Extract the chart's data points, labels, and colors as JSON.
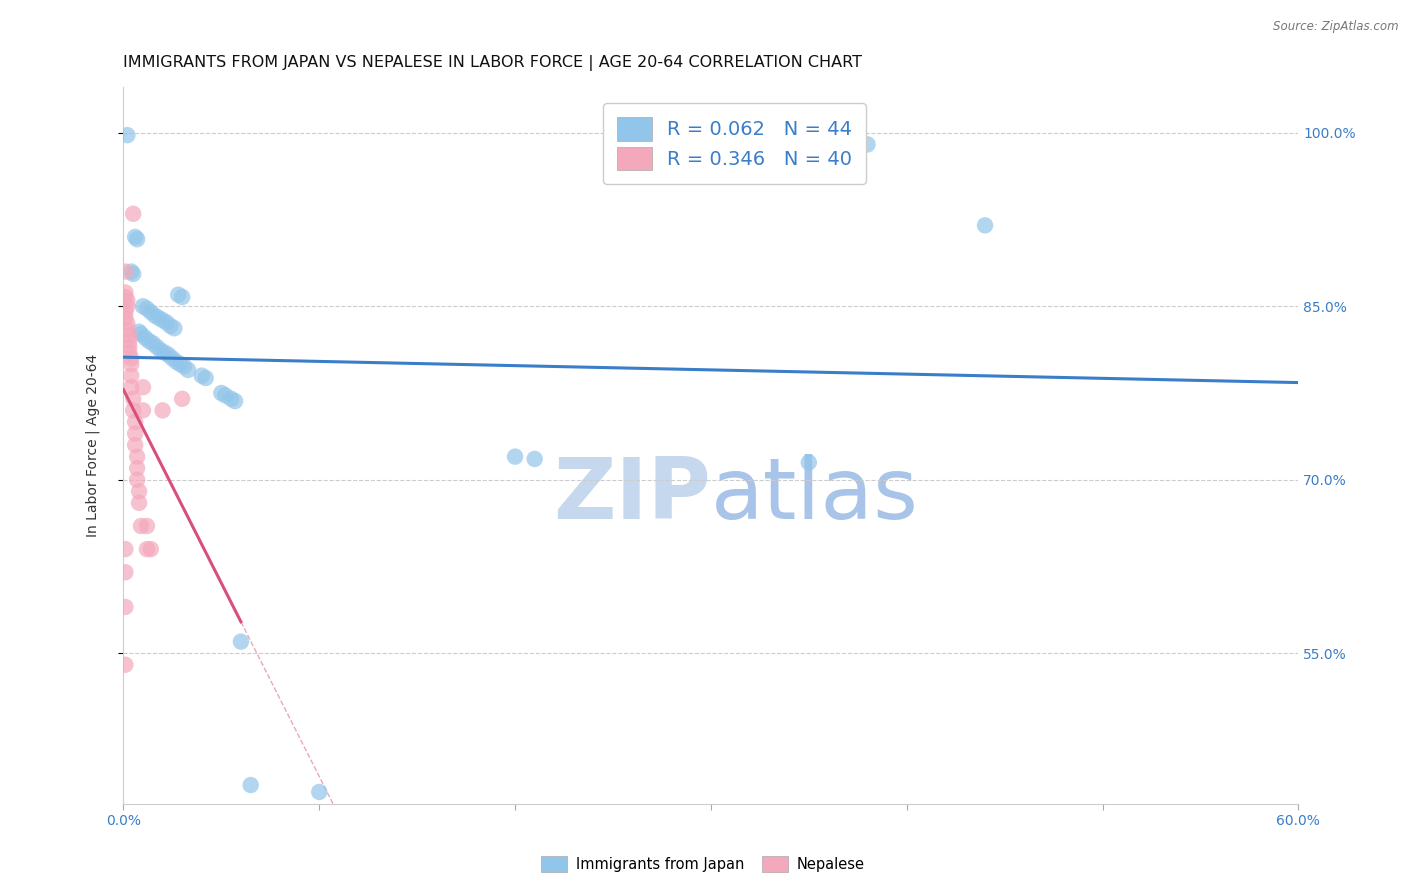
{
  "title": "IMMIGRANTS FROM JAPAN VS NEPALESE IN LABOR FORCE | AGE 20-64 CORRELATION CHART",
  "source": "Source: ZipAtlas.com",
  "ylabel": "In Labor Force | Age 20-64",
  "xlim": [
    0.0,
    0.6
  ],
  "ylim": [
    0.42,
    1.04
  ],
  "xticks": [
    0.0,
    0.1,
    0.2,
    0.3,
    0.4,
    0.5,
    0.6
  ],
  "yticks": [
    0.55,
    0.7,
    0.85,
    1.0
  ],
  "ytick_labels": [
    "55.0%",
    "70.0%",
    "85.0%",
    "100.0%"
  ],
  "xtick_labels": [
    "0.0%",
    "",
    "",
    "",
    "",
    "",
    "60.0%"
  ],
  "legend_labels": [
    "Immigrants from Japan",
    "Nepalese"
  ],
  "r_japan": 0.062,
  "n_japan": 44,
  "r_nepal": 0.346,
  "n_nepal": 40,
  "color_japan": "#92C5EA",
  "color_nepal": "#F4A8BC",
  "trendline_japan_color": "#3A7DC9",
  "trendline_nepal_color": "#D94F7A",
  "scatter_japan": [
    [
      0.002,
      0.998
    ],
    [
      0.006,
      0.91
    ],
    [
      0.007,
      0.908
    ],
    [
      0.004,
      0.88
    ],
    [
      0.005,
      0.878
    ],
    [
      0.028,
      0.86
    ],
    [
      0.03,
      0.858
    ],
    [
      0.01,
      0.85
    ],
    [
      0.012,
      0.848
    ],
    [
      0.014,
      0.845
    ],
    [
      0.016,
      0.842
    ],
    [
      0.018,
      0.84
    ],
    [
      0.02,
      0.838
    ],
    [
      0.022,
      0.836
    ],
    [
      0.024,
      0.833
    ],
    [
      0.026,
      0.831
    ],
    [
      0.008,
      0.828
    ],
    [
      0.009,
      0.826
    ],
    [
      0.011,
      0.823
    ],
    [
      0.013,
      0.82
    ],
    [
      0.015,
      0.818
    ],
    [
      0.017,
      0.815
    ],
    [
      0.019,
      0.812
    ],
    [
      0.021,
      0.81
    ],
    [
      0.023,
      0.808
    ],
    [
      0.025,
      0.805
    ],
    [
      0.027,
      0.802
    ],
    [
      0.029,
      0.8
    ],
    [
      0.031,
      0.798
    ],
    [
      0.033,
      0.795
    ],
    [
      0.04,
      0.79
    ],
    [
      0.042,
      0.788
    ],
    [
      0.05,
      0.775
    ],
    [
      0.052,
      0.773
    ],
    [
      0.055,
      0.77
    ],
    [
      0.057,
      0.768
    ],
    [
      0.2,
      0.72
    ],
    [
      0.21,
      0.718
    ],
    [
      0.35,
      0.715
    ],
    [
      0.44,
      0.92
    ],
    [
      0.38,
      0.99
    ],
    [
      0.06,
      0.56
    ],
    [
      0.065,
      0.436
    ],
    [
      0.1,
      0.43
    ]
  ],
  "scatter_nepal": [
    [
      0.001,
      0.88
    ],
    [
      0.001,
      0.862
    ],
    [
      0.001,
      0.858
    ],
    [
      0.002,
      0.855
    ],
    [
      0.002,
      0.85
    ],
    [
      0.001,
      0.845
    ],
    [
      0.001,
      0.84
    ],
    [
      0.002,
      0.835
    ],
    [
      0.002,
      0.83
    ],
    [
      0.003,
      0.825
    ],
    [
      0.003,
      0.82
    ],
    [
      0.003,
      0.815
    ],
    [
      0.003,
      0.81
    ],
    [
      0.004,
      0.805
    ],
    [
      0.004,
      0.8
    ],
    [
      0.004,
      0.79
    ],
    [
      0.004,
      0.78
    ],
    [
      0.005,
      0.77
    ],
    [
      0.005,
      0.76
    ],
    [
      0.006,
      0.75
    ],
    [
      0.006,
      0.74
    ],
    [
      0.006,
      0.73
    ],
    [
      0.007,
      0.72
    ],
    [
      0.007,
      0.71
    ],
    [
      0.007,
      0.7
    ],
    [
      0.008,
      0.69
    ],
    [
      0.008,
      0.68
    ],
    [
      0.009,
      0.66
    ],
    [
      0.001,
      0.64
    ],
    [
      0.001,
      0.62
    ],
    [
      0.01,
      0.78
    ],
    [
      0.01,
      0.76
    ],
    [
      0.012,
      0.66
    ],
    [
      0.012,
      0.64
    ],
    [
      0.014,
      0.64
    ],
    [
      0.001,
      0.59
    ],
    [
      0.001,
      0.54
    ],
    [
      0.005,
      0.93
    ],
    [
      0.02,
      0.76
    ],
    [
      0.03,
      0.77
    ]
  ],
  "background_color": "#FFFFFF",
  "grid_color": "#CCCCCC",
  "title_fontsize": 11.5,
  "axis_label_fontsize": 10,
  "tick_fontsize": 10,
  "tick_color": "#3A7DC9",
  "watermark_zip": "ZIP",
  "watermark_atlas": "atlas",
  "watermark_color_zip": "#C5D8EE",
  "watermark_color_atlas": "#A8C4E8"
}
